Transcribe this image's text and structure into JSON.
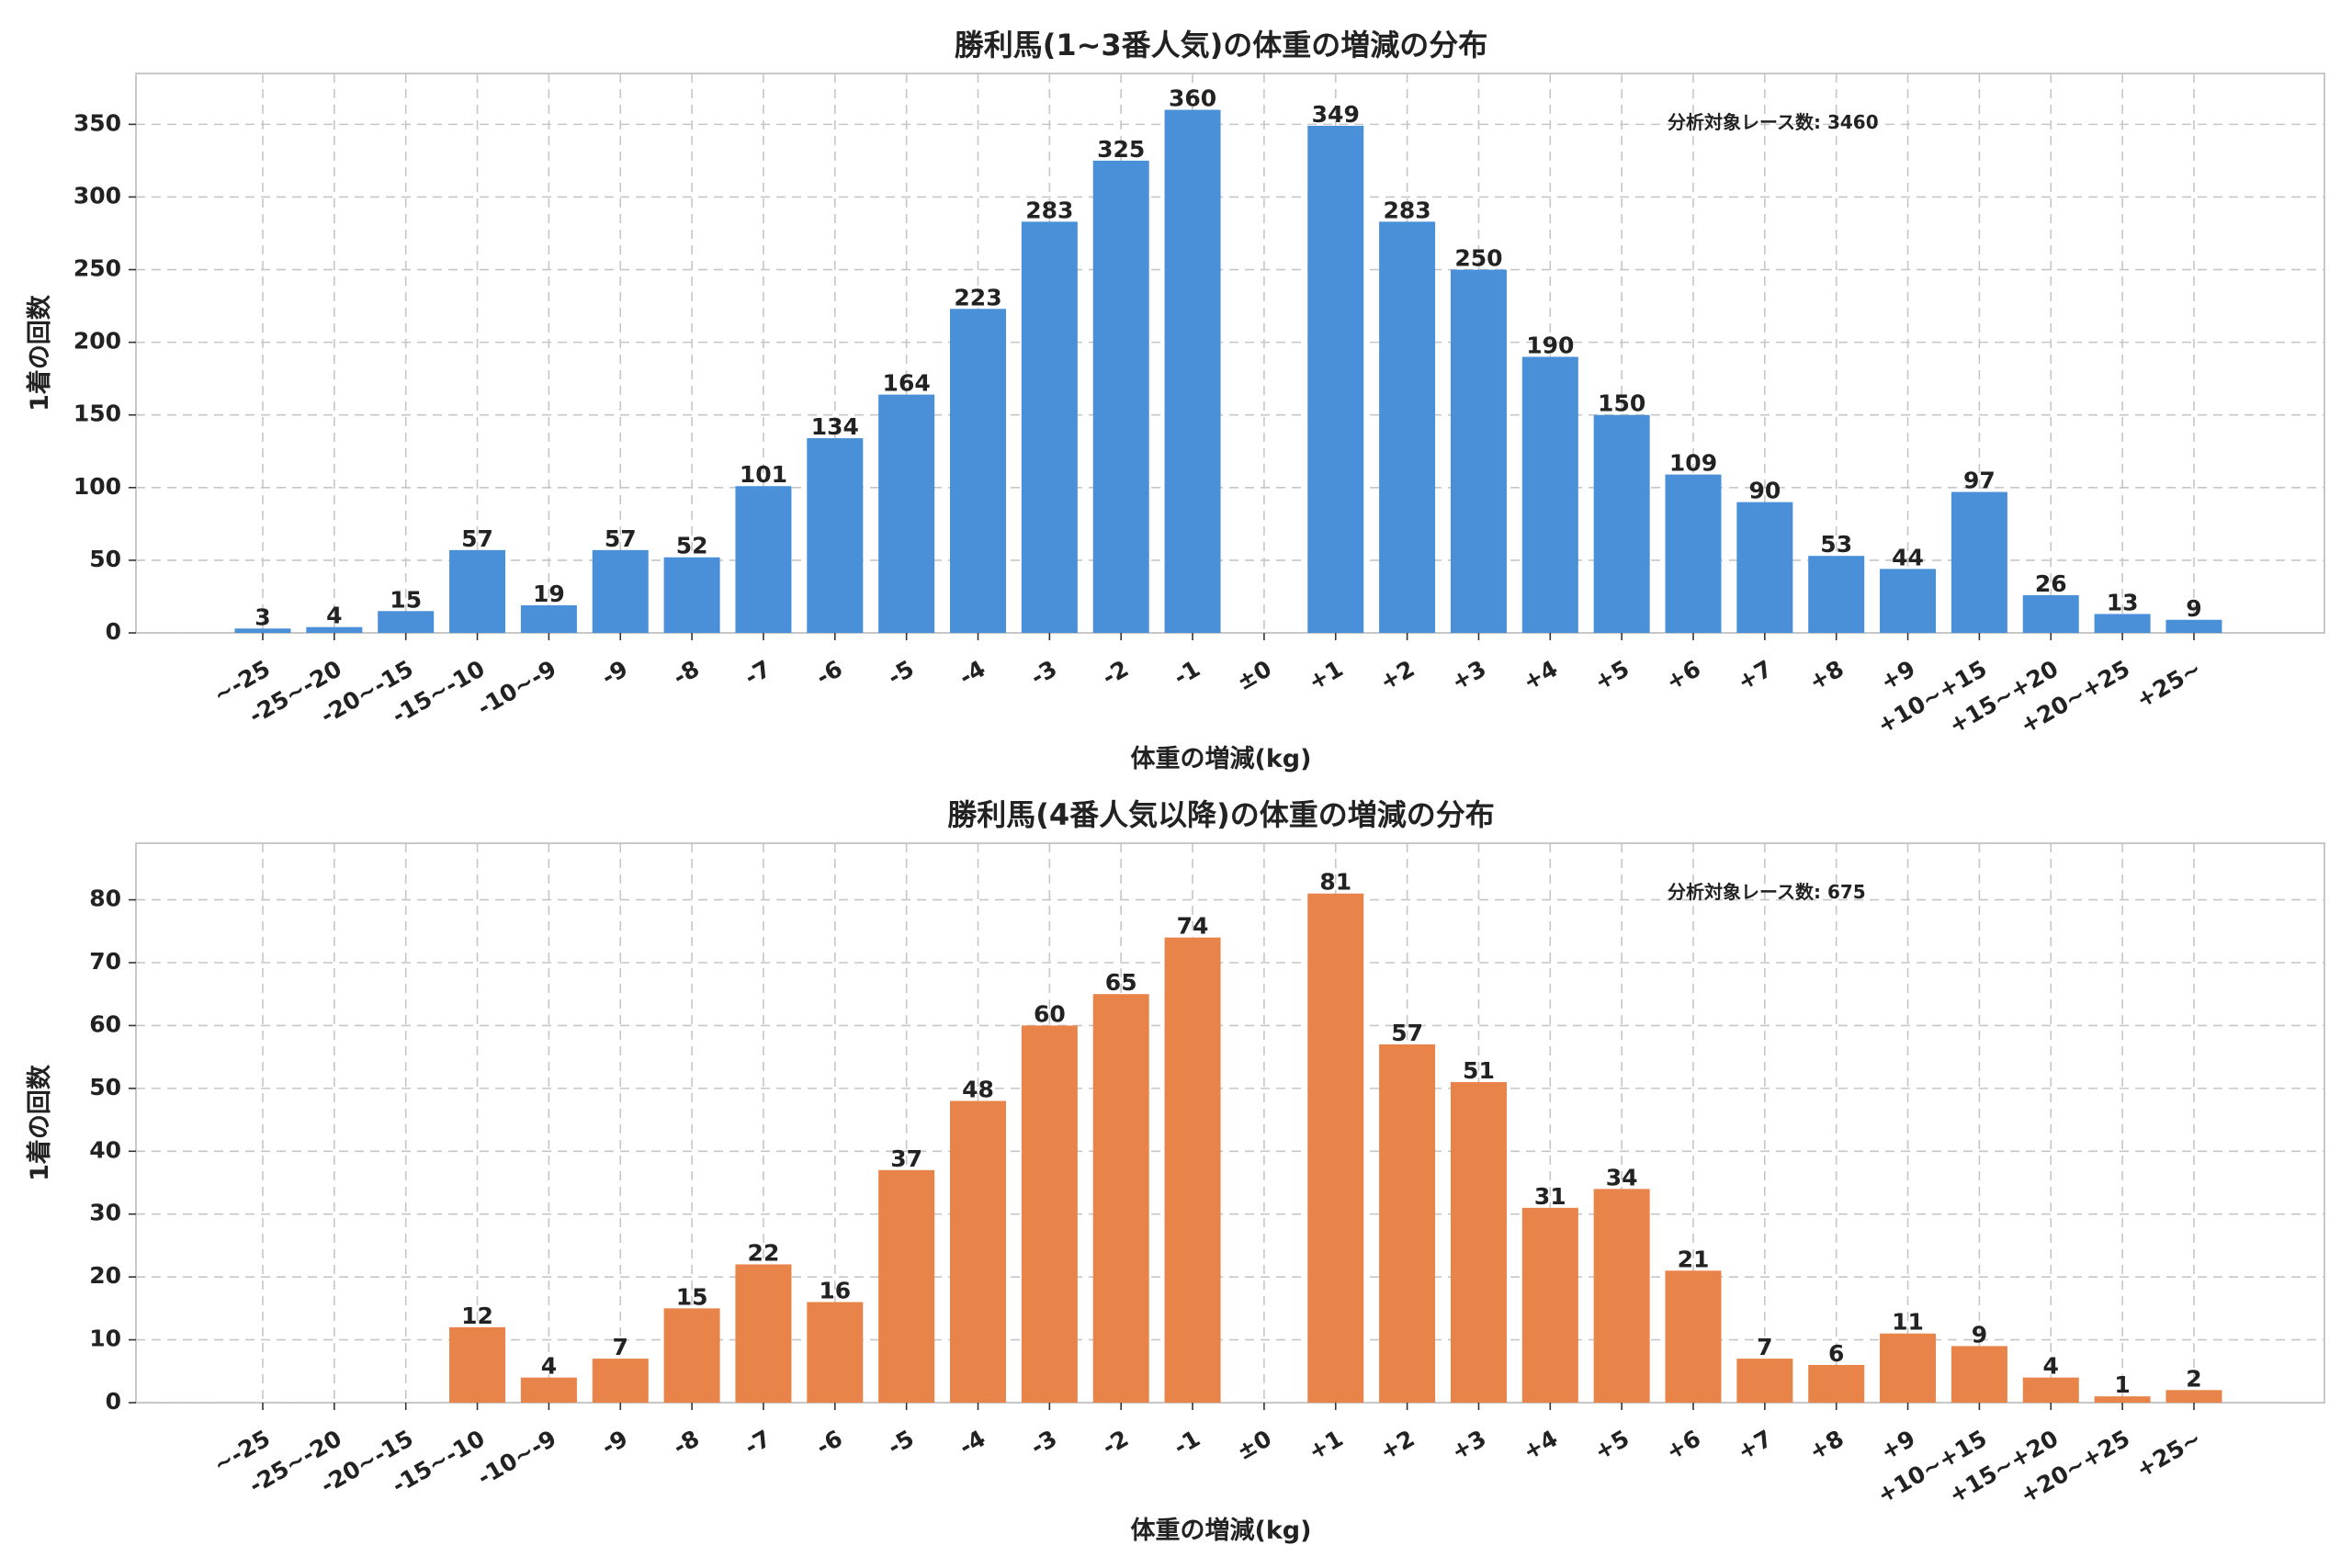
{
  "chart_data": [
    {
      "type": "bar",
      "title": "勝利馬(1~3番人気)の体重の増減の分布",
      "xlabel": "体重の増減(kg)",
      "ylabel": "1着の回数",
      "annotation": "分析対象レース数: 3460",
      "color": "#4a90d9",
      "grid": true,
      "ylim": [
        0,
        385
      ],
      "yticks": [
        0,
        50,
        100,
        150,
        200,
        250,
        300,
        350
      ],
      "categories": [
        "~-25",
        "-25~-20",
        "-20~-15",
        "-15~-10",
        "-10~-9",
        "-9",
        "-8",
        "-7",
        "-6",
        "-5",
        "-4",
        "-3",
        "-2",
        "-1",
        "±0",
        "+1",
        "+2",
        "+3",
        "+4",
        "+5",
        "+6",
        "+7",
        "+8",
        "+9",
        "+10~+15",
        "+15~+20",
        "+20~+25",
        "+25~"
      ],
      "values": [
        3,
        4,
        15,
        57,
        19,
        57,
        52,
        101,
        134,
        164,
        223,
        283,
        325,
        360,
        null,
        349,
        283,
        250,
        190,
        150,
        109,
        90,
        53,
        44,
        97,
        26,
        13,
        9
      ]
    },
    {
      "type": "bar",
      "title": "勝利馬(4番人気以降)の体重の増減の分布",
      "xlabel": "体重の増減(kg)",
      "ylabel": "1着の回数",
      "annotation": "分析対象レース数: 675",
      "color": "#e8834a",
      "grid": true,
      "ylim": [
        0,
        89
      ],
      "yticks": [
        0,
        10,
        20,
        30,
        40,
        50,
        60,
        70,
        80
      ],
      "categories": [
        "~-25",
        "-25~-20",
        "-20~-15",
        "-15~-10",
        "-10~-9",
        "-9",
        "-8",
        "-7",
        "-6",
        "-5",
        "-4",
        "-3",
        "-2",
        "-1",
        "±0",
        "+1",
        "+2",
        "+3",
        "+4",
        "+5",
        "+6",
        "+7",
        "+8",
        "+9",
        "+10~+15",
        "+15~+20",
        "+20~+25",
        "+25~"
      ],
      "values": [
        null,
        null,
        null,
        12,
        4,
        7,
        15,
        22,
        16,
        37,
        48,
        60,
        65,
        74,
        null,
        81,
        57,
        51,
        31,
        34,
        21,
        7,
        6,
        11,
        9,
        4,
        1,
        2
      ]
    }
  ]
}
